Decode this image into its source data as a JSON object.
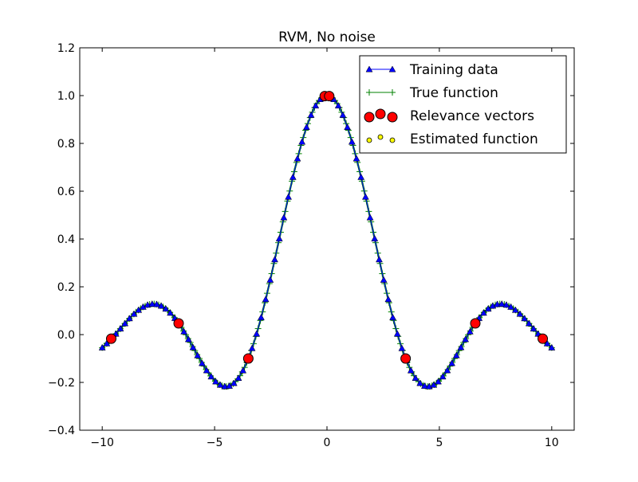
{
  "chart_data": {
    "type": "scatter",
    "title": "RVM, No noise",
    "xlabel": "",
    "ylabel": "",
    "xlim": [
      -11,
      11
    ],
    "ylim": [
      -0.4,
      1.2
    ],
    "x_ticks": [
      -10,
      -5,
      0,
      5,
      10
    ],
    "x_tick_labels": [
      "−10",
      "−5",
      "0",
      "5",
      "10"
    ],
    "y_ticks": [
      -0.4,
      -0.2,
      0.0,
      0.2,
      0.4,
      0.6,
      0.8,
      1.0,
      1.2
    ],
    "y_tick_labels": [
      "−0.4",
      "−0.2",
      "0.0",
      "0.2",
      "0.4",
      "0.6",
      "0.8",
      "1.0",
      "1.2"
    ],
    "grid": false,
    "legend_position": "top-right",
    "function": "sin(x)/x",
    "x_range": [
      -10,
      10
    ],
    "series": [
      {
        "name": "Training data",
        "kind": "line-triangle",
        "color": "#0000ff",
        "n_points": 100
      },
      {
        "name": "True function",
        "kind": "line-plus",
        "color": "#008000",
        "n_points": 200
      },
      {
        "name": "Relevance vectors",
        "kind": "scatter-large-circle",
        "color": "#ff0000",
        "x": [
          -9.6,
          -6.6,
          -3.5,
          -0.1,
          0.1,
          3.5,
          6.6,
          9.6
        ],
        "y": [
          -0.017,
          0.047,
          -0.1,
          0.998,
          0.998,
          -0.1,
          0.047,
          -0.017
        ]
      },
      {
        "name": "Estimated function",
        "kind": "scatter-small-circle",
        "color": "#ffff00",
        "n_points": 100
      }
    ]
  }
}
